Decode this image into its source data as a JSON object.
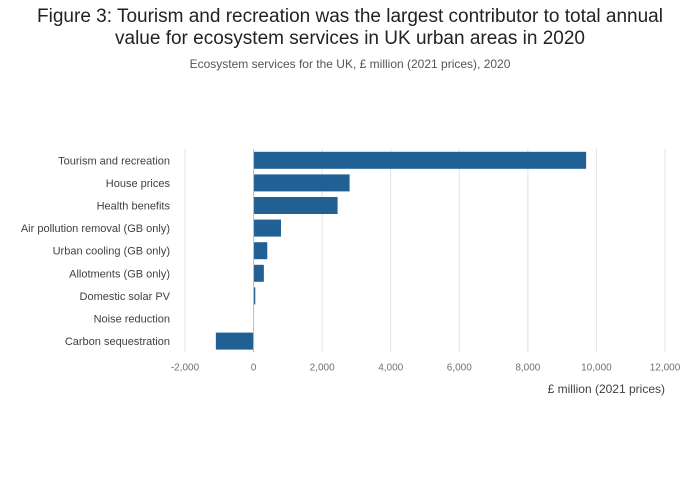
{
  "header": {
    "title_line1": "Figure 3: Tourism and recreation was the largest contributor to total annual",
    "title_line2": "value for ecosystem services in UK urban areas in 2020",
    "subtitle": "Ecosystem services for the UK, £ million (2021 prices), 2020"
  },
  "colors": {
    "bar": "#206095",
    "grid": "#e2e2e3",
    "zero_line": "#bcbcbd"
  },
  "chart_data": {
    "type": "bar",
    "orientation": "horizontal",
    "title": "Figure 3: Tourism and recreation was the largest contributor to total annual value for ecosystem services in UK urban areas in 2020",
    "subtitle": "Ecosystem services for the UK, £ million (2021 prices), 2020",
    "xlabel": "£ million (2021 prices)",
    "ylabel": "",
    "xlim": [
      -2000,
      12000
    ],
    "xticks": [
      -2000,
      0,
      2000,
      4000,
      6000,
      8000,
      10000,
      12000
    ],
    "xtick_labels": [
      "-2,000",
      "0",
      "2,000",
      "4,000",
      "6,000",
      "8,000",
      "10,000",
      "12,000"
    ],
    "grid": true,
    "categories": [
      "Tourism and recreation",
      "House prices",
      "Health benefits",
      "Air pollution removal (GB only)",
      "Urban cooling (GB only)",
      "Allotments (GB only)",
      "Domestic solar PV",
      "Noise reduction",
      "Carbon sequestration"
    ],
    "values": [
      9700,
      2800,
      2450,
      800,
      400,
      300,
      50,
      0,
      -1100
    ]
  }
}
